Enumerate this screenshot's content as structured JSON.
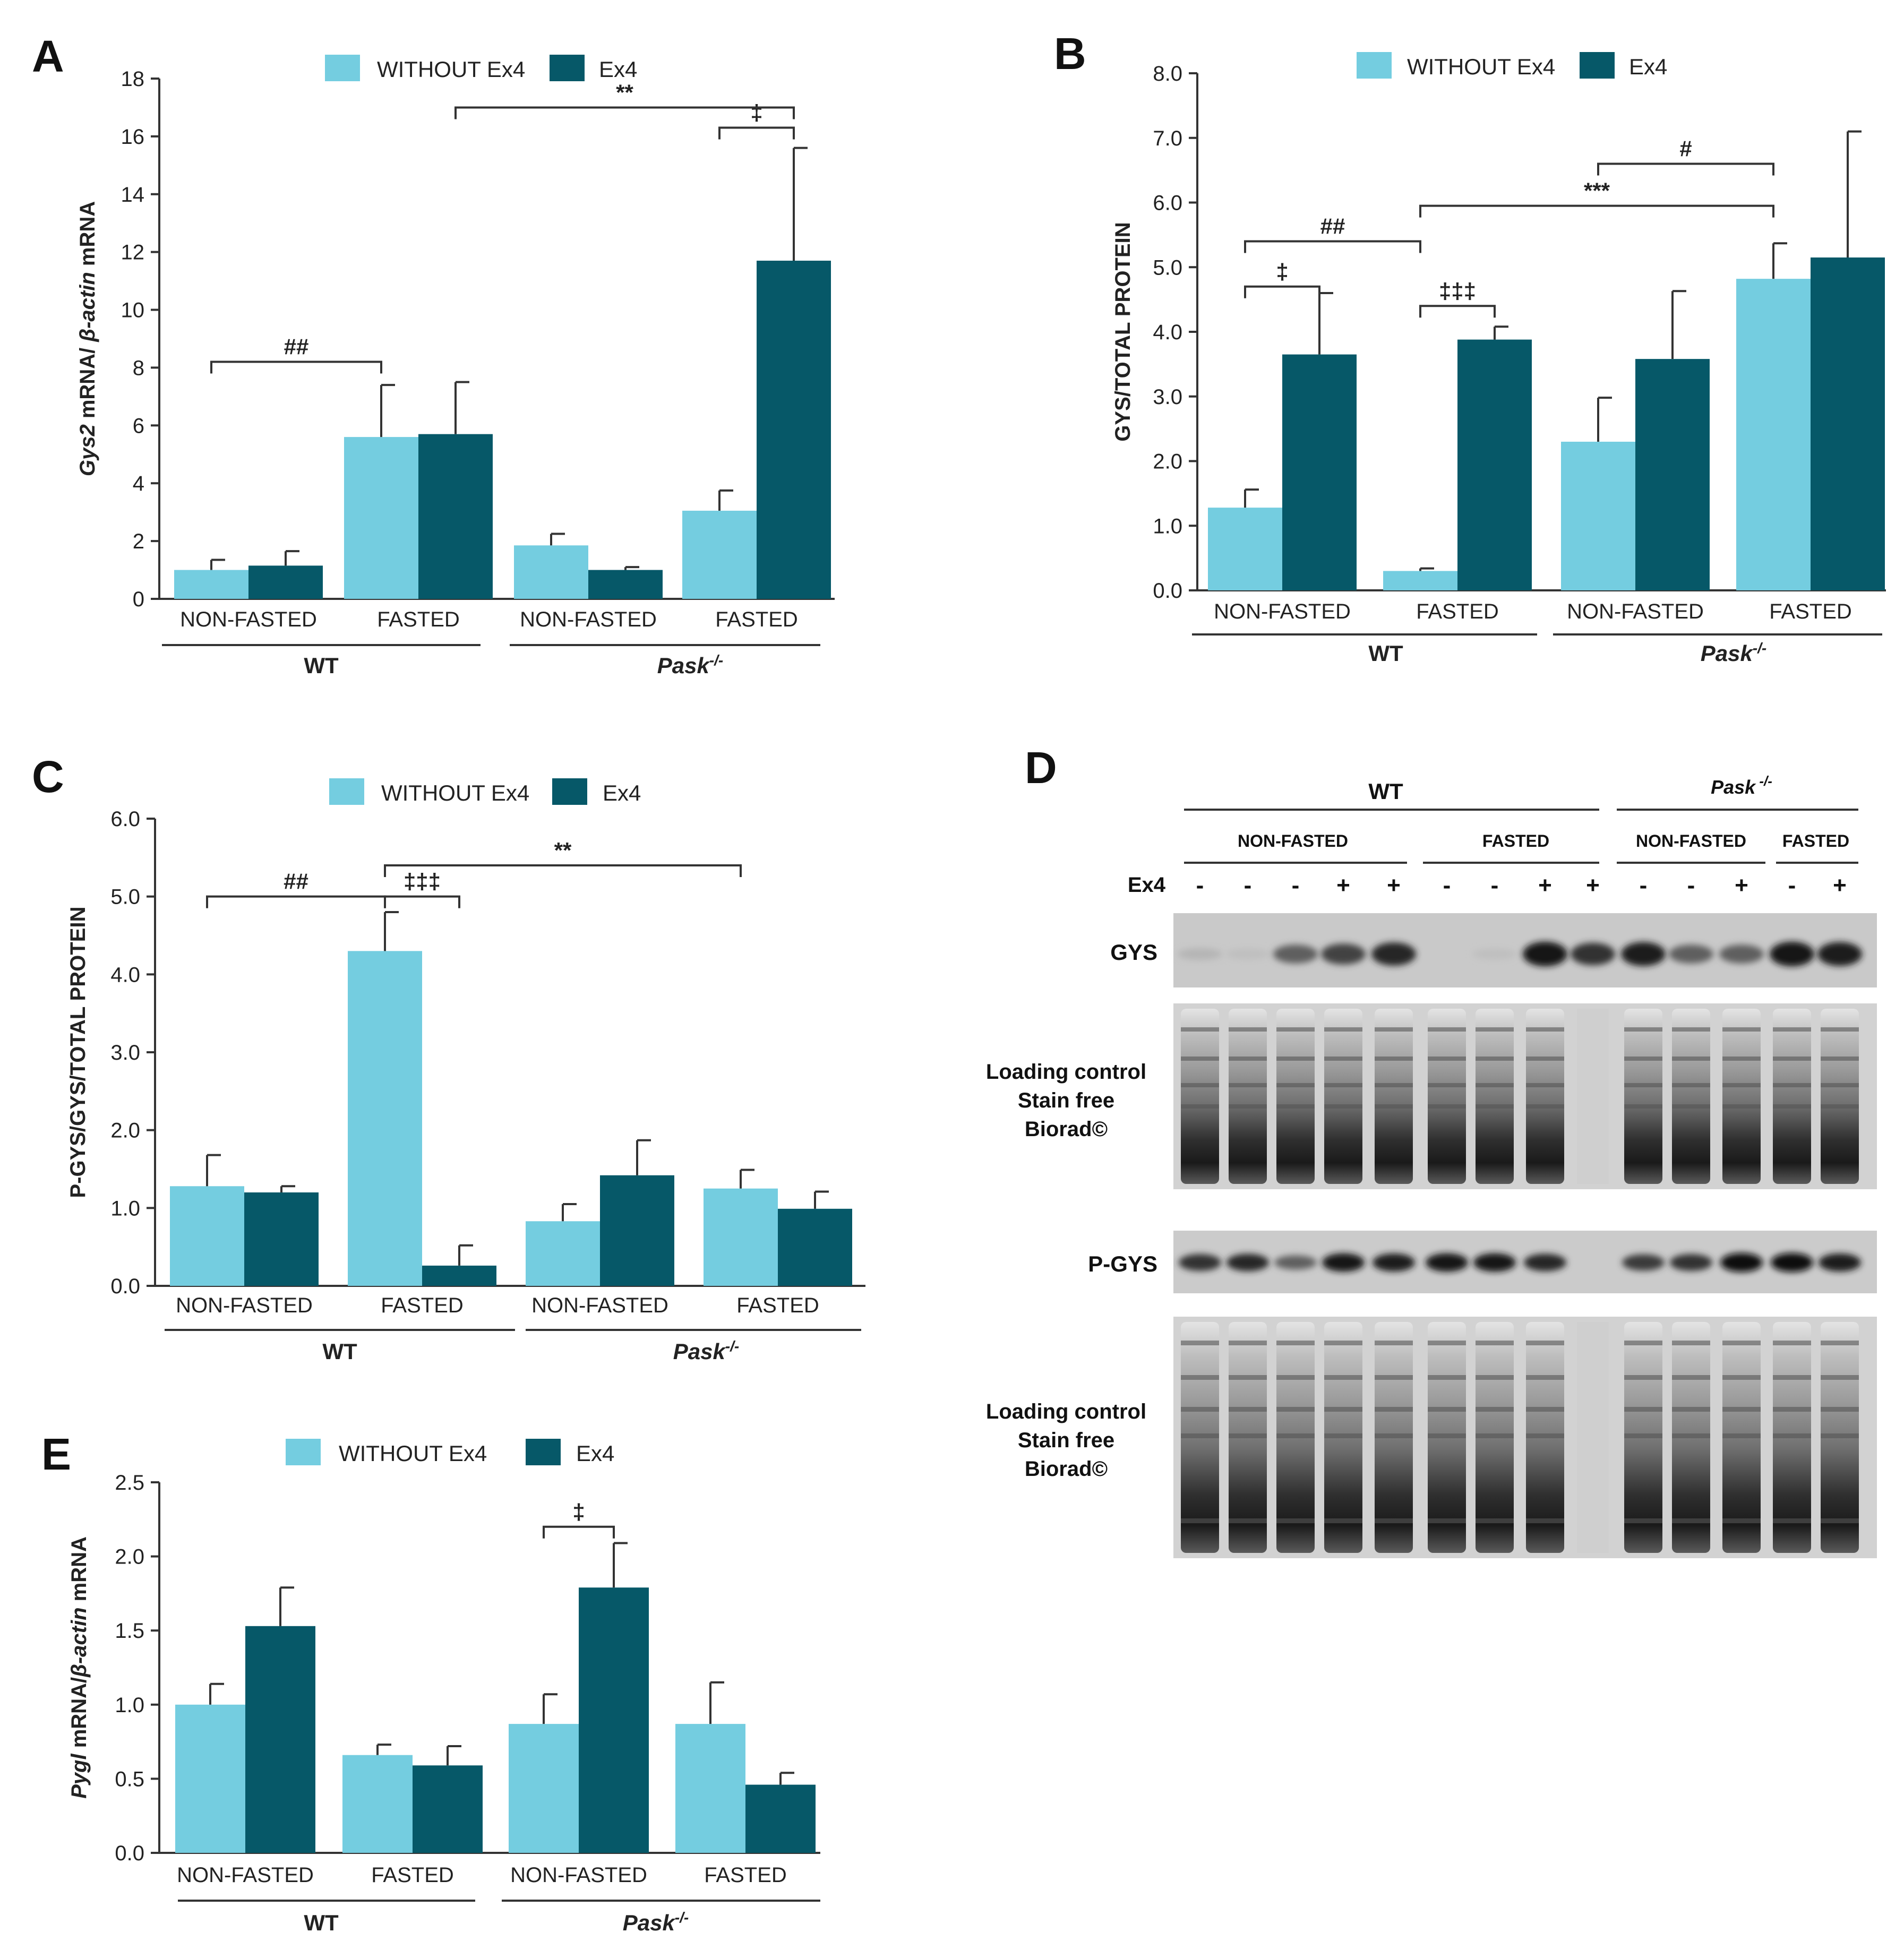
{
  "colors": {
    "without": "#74cde0",
    "ex4": "#065868",
    "axis": "#333333",
    "text": "#222222"
  },
  "legend": {
    "without_label": "WITHOUT Ex4",
    "ex4_label": "Ex4"
  },
  "chart_data": [
    {
      "panel": "A",
      "type": "bar",
      "ylabel_prefix": "Gys2",
      "ylabel_mid": " mRNA/ ",
      "ylabel_italic": "β-actin",
      "ylabel_suffix": " mRNA",
      "ylim": [
        0,
        18
      ],
      "yticks": [
        "0",
        "2",
        "4",
        "6",
        "8",
        "10",
        "12",
        "14",
        "16",
        "18"
      ],
      "categories": [
        "NON-FASTED",
        "FASTED",
        "NON-FASTED",
        "FASTED"
      ],
      "groups": [
        {
          "label": "WT",
          "italic": false
        },
        {
          "label": "Pask",
          "sup": "-/-",
          "italic": true
        }
      ],
      "series": [
        {
          "name": "WITHOUT Ex4",
          "values": [
            1.0,
            5.6,
            1.85,
            3.05
          ],
          "errors": [
            0.35,
            1.8,
            0.4,
            0.7
          ]
        },
        {
          "name": "Ex4",
          "values": [
            1.15,
            5.7,
            1.0,
            11.7
          ],
          "errors": [
            0.5,
            1.8,
            0.1,
            3.9
          ]
        }
      ],
      "annotations": [
        {
          "text": "##",
          "x1": "0w",
          "x2": "1w",
          "y": 8.2
        },
        {
          "text": "‡",
          "x1": "3w",
          "x2": "3e",
          "y": 16.3
        },
        {
          "text": "**",
          "x1": "1e",
          "x2": "3e",
          "y": 17.0
        }
      ]
    },
    {
      "panel": "B",
      "type": "bar",
      "ylabel_prefix": "",
      "ylabel_mid": "GYS/TOTAL PROTEIN",
      "ylabel_italic": "",
      "ylabel_suffix": "",
      "ylim": [
        0,
        8
      ],
      "yticks": [
        "0.0",
        "1.0",
        "2.0",
        "3.0",
        "4.0",
        "5.0",
        "6.0",
        "7.0",
        "8.0"
      ],
      "categories": [
        "NON-FASTED",
        "FASTED",
        "NON-FASTED",
        "FASTED"
      ],
      "groups": [
        {
          "label": "WT",
          "italic": false
        },
        {
          "label": "Pask",
          "sup": "-/-",
          "italic": true
        }
      ],
      "series": [
        {
          "name": "WITHOUT Ex4",
          "values": [
            1.28,
            0.3,
            2.3,
            4.82
          ],
          "errors": [
            0.28,
            0.04,
            0.68,
            0.55
          ]
        },
        {
          "name": "Ex4",
          "values": [
            3.65,
            3.88,
            3.58,
            5.15
          ],
          "errors": [
            0.95,
            0.2,
            1.05,
            1.95
          ]
        }
      ],
      "annotations": [
        {
          "text": "‡",
          "x1": "0w",
          "x2": "0e",
          "y": 4.7
        },
        {
          "text": "##",
          "x1": "0w",
          "x2": "1w",
          "y": 5.4
        },
        {
          "text": "‡‡‡",
          "x1": "1w",
          "x2": "1e",
          "y": 4.4
        },
        {
          "text": "***",
          "x1": "1w",
          "x2": "3w",
          "y": 5.95
        },
        {
          "text": "#",
          "x1": "2w",
          "x2": "3w",
          "y": 6.6
        }
      ]
    },
    {
      "panel": "C",
      "type": "bar",
      "ylabel_prefix": "",
      "ylabel_mid": "P-GYS/GYS/TOTAL PROTEIN",
      "ylabel_italic": "",
      "ylabel_suffix": "",
      "ylim": [
        0,
        6
      ],
      "yticks": [
        "0.0",
        "1.0",
        "2.0",
        "3.0",
        "4.0",
        "5.0",
        "6.0"
      ],
      "categories": [
        "NON-FASTED",
        "FASTED",
        "NON-FASTED",
        "FASTED"
      ],
      "groups": [
        {
          "label": "WT",
          "italic": false
        },
        {
          "label": "Pask",
          "sup": "-/-",
          "italic": true
        }
      ],
      "series": [
        {
          "name": "WITHOUT Ex4",
          "values": [
            1.28,
            4.3,
            0.83,
            1.25
          ],
          "errors": [
            0.4,
            0.5,
            0.22,
            0.24
          ]
        },
        {
          "name": "Ex4",
          "values": [
            1.2,
            0.26,
            1.42,
            0.99
          ],
          "errors": [
            0.08,
            0.26,
            0.45,
            0.22
          ]
        }
      ],
      "annotations": [
        {
          "text": "##",
          "x1": "0w",
          "x2": "1w",
          "y": 5.0
        },
        {
          "text": "‡‡‡",
          "x1": "1w",
          "x2": "1e",
          "y": 5.0
        },
        {
          "text": "**",
          "x1": "1w",
          "x2": "3w",
          "y": 5.4
        }
      ]
    },
    {
      "panel": "E",
      "type": "bar",
      "ylabel_prefix": "Pygl",
      "ylabel_mid": " mRNA/",
      "ylabel_italic": "β-actin",
      "ylabel_suffix": " mRNA",
      "ylim": [
        0,
        2.5
      ],
      "yticks": [
        "0.0",
        "0.5",
        "1.0",
        "1.5",
        "2.0",
        "2.5"
      ],
      "categories": [
        "NON-FASTED",
        "FASTED",
        "NON-FASTED",
        "FASTED"
      ],
      "groups": [
        {
          "label": "WT",
          "italic": false
        },
        {
          "label": "Pask",
          "sup": "-/-",
          "italic": true
        }
      ],
      "series": [
        {
          "name": "WITHOUT Ex4",
          "values": [
            1.0,
            0.66,
            0.87,
            0.87
          ],
          "errors": [
            0.14,
            0.07,
            0.2,
            0.28
          ]
        },
        {
          "name": "Ex4",
          "values": [
            1.53,
            0.59,
            1.79,
            0.46
          ],
          "errors": [
            0.26,
            0.13,
            0.3,
            0.08
          ]
        }
      ],
      "annotations": [
        {
          "text": "‡",
          "x1": "2w",
          "x2": "2e",
          "y": 2.2
        }
      ]
    }
  ],
  "blot": {
    "panel": "D",
    "wt_label": "WT",
    "pask_label": "Pask",
    "pask_sup": " -/-",
    "nonfasted_label": "NON-FASTED",
    "fasted_label": "FASTED",
    "ex4_row_label": "Ex4",
    "ex4_signs": [
      "-",
      "-",
      "-",
      "+",
      "+",
      "-",
      "-",
      "+",
      "+",
      "-",
      "-",
      "+",
      "-",
      "+"
    ],
    "gys_label": "GYS",
    "pgys_label": "P-GYS",
    "loading_line1": "Loading control",
    "loading_line2": "Stain free",
    "loading_line3": "Biorad©",
    "gys_intensity": [
      0.1,
      0.05,
      0.55,
      0.7,
      0.85,
      0.0,
      0.05,
      0.95,
      0.8,
      0.9,
      0.55,
      0.55,
      0.95,
      0.9
    ],
    "pgys_intensity": [
      0.8,
      0.85,
      0.55,
      0.95,
      0.9,
      0.95,
      0.95,
      0.85,
      0.0,
      0.75,
      0.8,
      1.0,
      1.0,
      0.9
    ]
  }
}
